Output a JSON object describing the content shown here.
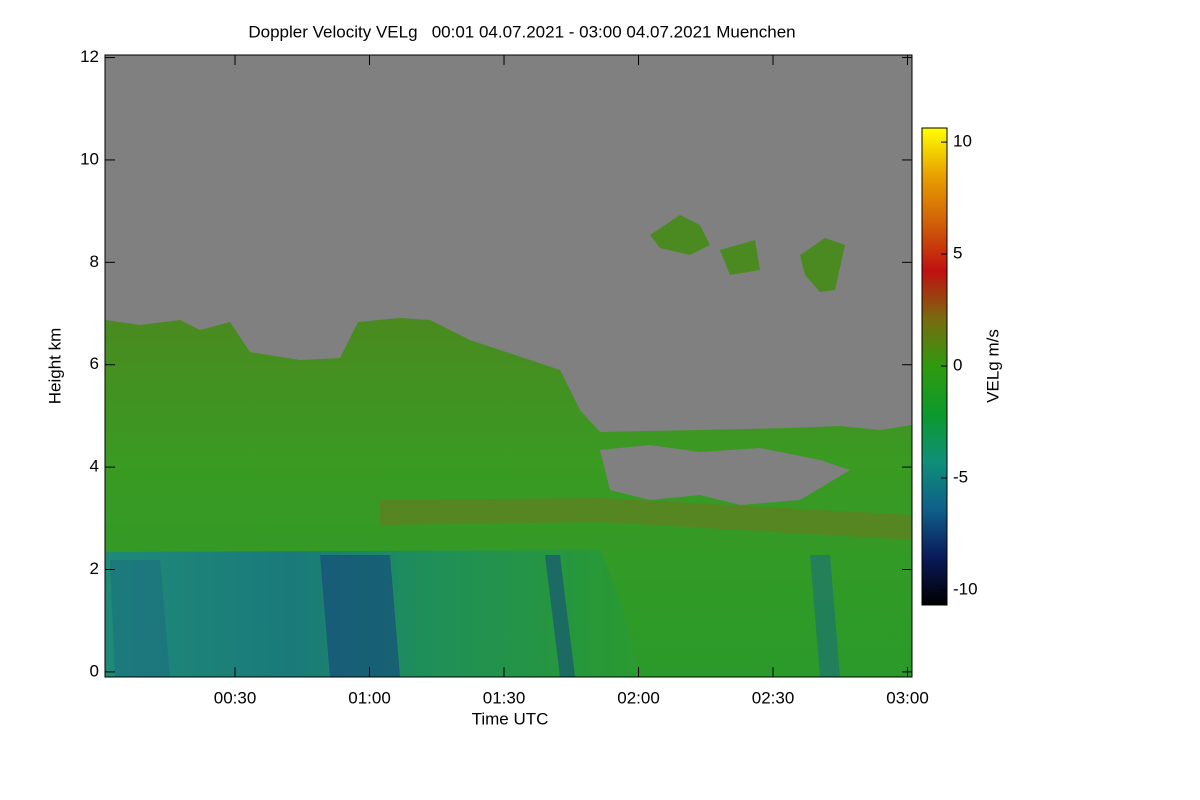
{
  "chart_data": {
    "type": "heatmap",
    "title": "Doppler Velocity VELg   00:01 04.07.2021 - 03:00 04.07.2021 Muenchen",
    "x_label": "Time UTC",
    "y_label": "Height km",
    "xlim": [
      1,
      181
    ],
    "xticks": [
      {
        "value": 30,
        "label": "00:30"
      },
      {
        "value": 60,
        "label": "01:00"
      },
      {
        "value": 90,
        "label": "01:30"
      },
      {
        "value": 120,
        "label": "02:00"
      },
      {
        "value": 150,
        "label": "02:30"
      },
      {
        "value": 180,
        "label": "03:00"
      }
    ],
    "ylim": [
      -0.1,
      12.05
    ],
    "yticks": [
      0,
      2,
      4,
      6,
      8,
      10,
      12
    ],
    "colorbar": {
      "label": "VELg m/s",
      "lim": [
        -10.67,
        10.63
      ],
      "ticks": [
        -10,
        -5,
        0,
        5,
        10
      ],
      "colormap": [
        "#000000",
        "#0a1a5a",
        "#0f5f8a",
        "#0f8f78",
        "#0c9a2c",
        "#2f9a10",
        "#7a6a10",
        "#c01010",
        "#d06008",
        "#e8a000",
        "#ffff00"
      ]
    }
  }
}
